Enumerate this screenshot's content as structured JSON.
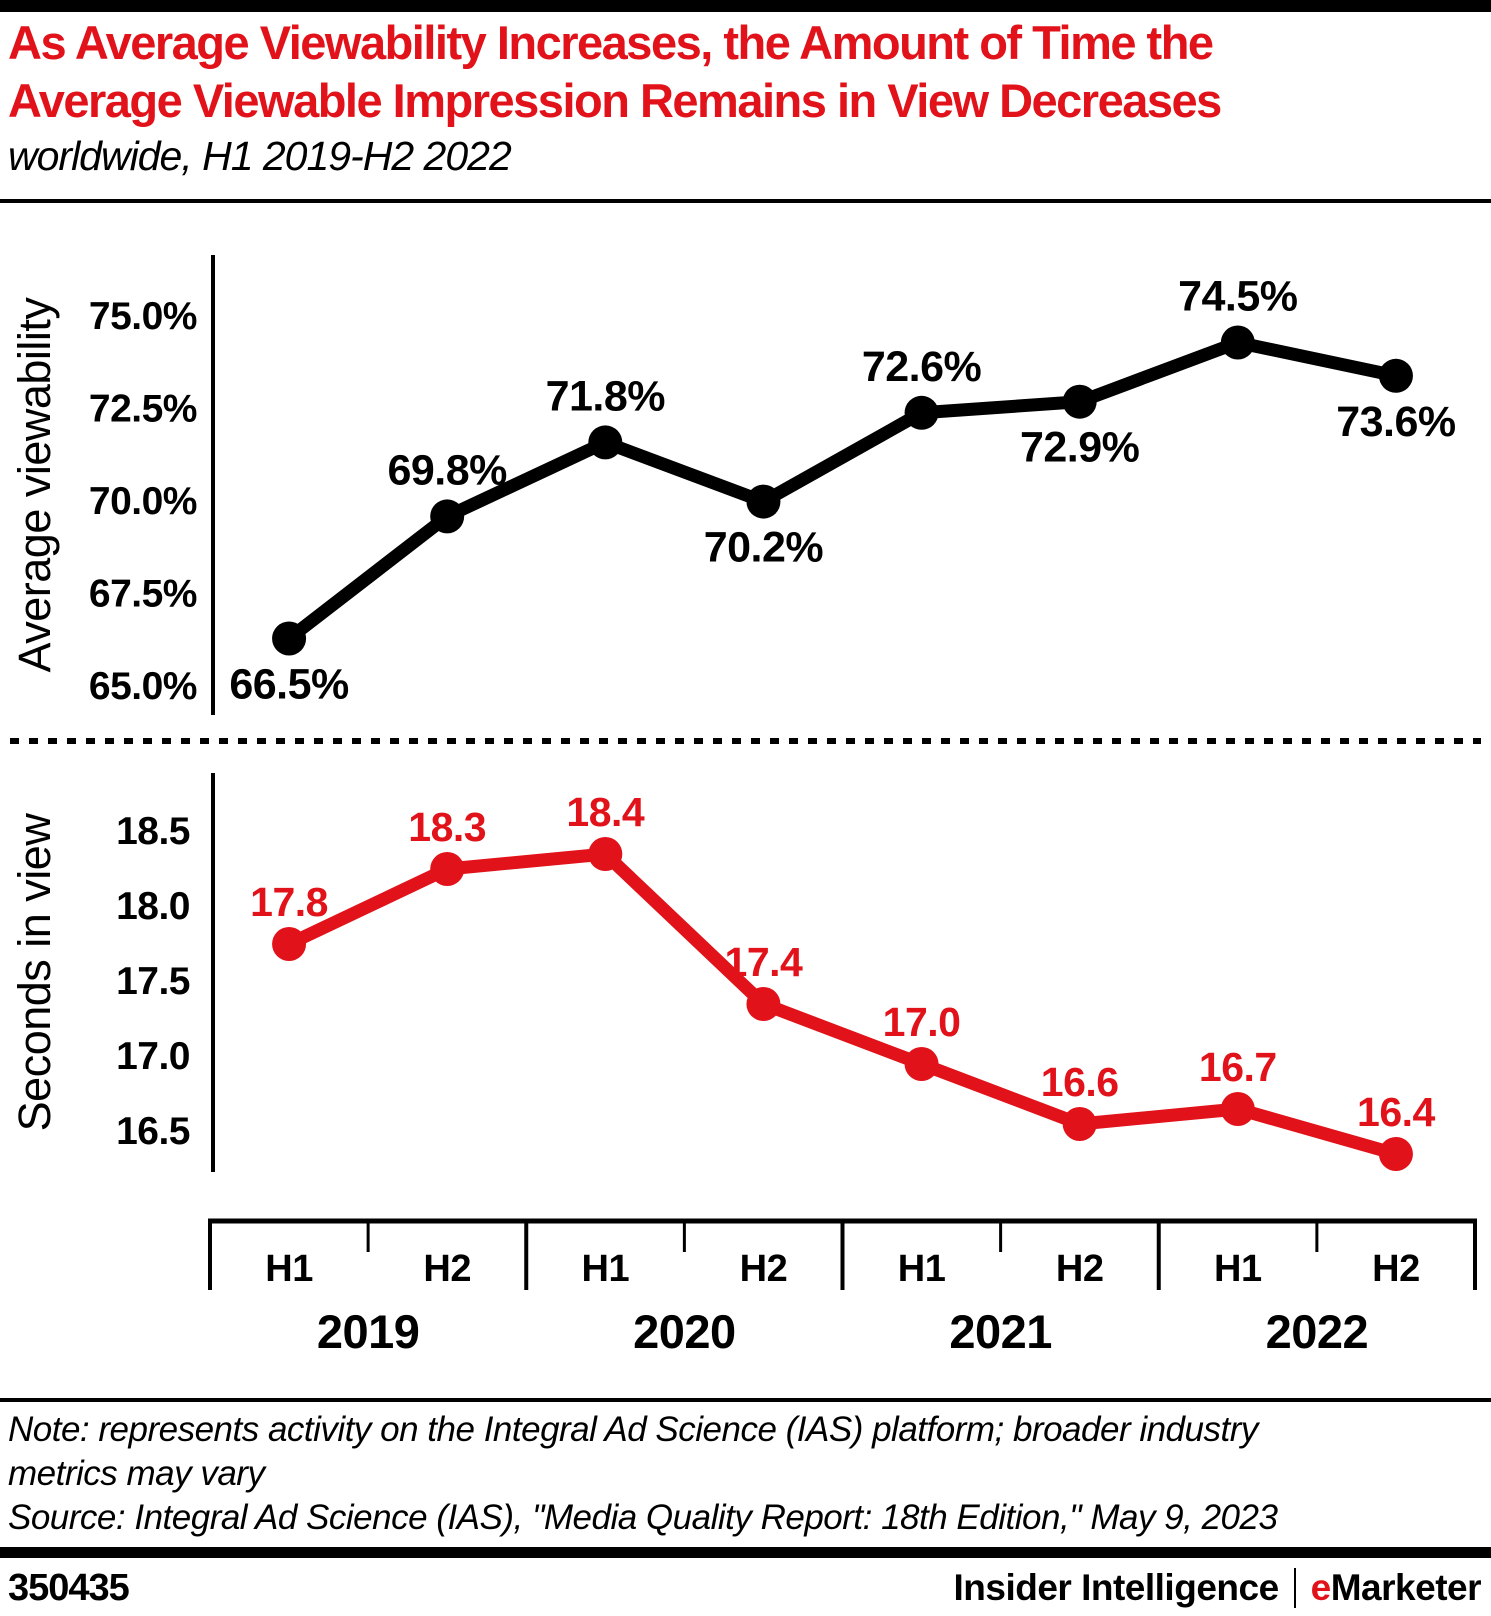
{
  "header": {
    "title_line1": "As Average Viewability Increases, the Amount of Time the",
    "title_line2": "Average Viewable Impression Remains in View Decreases",
    "subtitle": "worldwide, H1 2019-H2 2022"
  },
  "colors": {
    "accent_red": "#e11219",
    "line_black": "#000000"
  },
  "chart_data": [
    {
      "type": "line",
      "name": "Average viewability",
      "ylabel": "Average viewability",
      "color": "#000000",
      "categories": [
        "H1 2019",
        "H2 2019",
        "H1 2020",
        "H2 2020",
        "H1 2021",
        "H2 2021",
        "H1 2022",
        "H2 2022"
      ],
      "values": [
        66.5,
        69.8,
        71.8,
        70.2,
        72.6,
        72.9,
        74.5,
        73.6
      ],
      "point_labels": [
        "66.5%",
        "69.8%",
        "71.8%",
        "70.2%",
        "72.6%",
        "72.9%",
        "74.5%",
        "73.6%"
      ],
      "label_position": [
        "below",
        "above",
        "above",
        "below",
        "above",
        "below",
        "above",
        "below"
      ],
      "yticks": [
        75.0,
        72.5,
        70.0,
        67.5,
        65.0
      ],
      "ytick_labels": [
        "75.0%",
        "72.5%",
        "70.0%",
        "67.5%",
        "65.0%"
      ],
      "ylim": [
        64.4,
        76.9
      ],
      "grid": false,
      "legend": "none"
    },
    {
      "type": "line",
      "name": "Seconds in view",
      "ylabel": "Seconds in view",
      "color": "#e11219",
      "categories": [
        "H1 2019",
        "H2 2019",
        "H1 2020",
        "H2 2020",
        "H1 2021",
        "H2 2021",
        "H1 2022",
        "H2 2022"
      ],
      "values": [
        17.8,
        18.3,
        18.4,
        17.4,
        17.0,
        16.6,
        16.7,
        16.4
      ],
      "point_labels": [
        "17.8",
        "18.3",
        "18.4",
        "17.4",
        "17.0",
        "16.6",
        "16.7",
        "16.4"
      ],
      "label_position": [
        "above",
        "above",
        "above",
        "above",
        "above",
        "above",
        "above",
        "above"
      ],
      "yticks": [
        18.5,
        18.0,
        17.5,
        17.0,
        16.5
      ],
      "ytick_labels": [
        "18.5",
        "18.0",
        "17.5",
        "17.0",
        "16.5"
      ],
      "ylim": [
        16.28,
        18.94
      ],
      "grid": false,
      "legend": "none"
    }
  ],
  "x_axis": {
    "half_labels": [
      "H1",
      "H2",
      "H1",
      "H2",
      "H1",
      "H2",
      "H1",
      "H2"
    ],
    "year_labels": [
      "2019",
      "2020",
      "2021",
      "2022"
    ]
  },
  "footer": {
    "note_line1": "Note: represents activity on the Integral Ad Science (IAS) platform; broader industry",
    "note_line2": "metrics may vary",
    "source": "Source: Integral Ad Science (IAS), \"Media Quality Report: 18th Edition,\" May 9, 2023",
    "chart_id": "350435",
    "brand_left": "Insider Intelligence",
    "brand_e": "e",
    "brand_rest": "Marketer"
  }
}
